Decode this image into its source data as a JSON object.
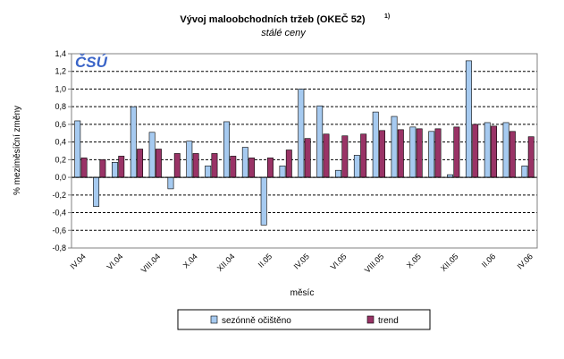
{
  "chart_data": {
    "type": "bar",
    "title": "Vývoj maloobchodních tržeb (OKEČ  52)",
    "title_superscript": "1)",
    "subtitle": "stálé ceny",
    "logo": "ČSÚ",
    "xlabel": "měsíc",
    "ylabel": "% meziměsíční změny",
    "ylim": [
      -0.8,
      1.4
    ],
    "yticks": [
      "1,4",
      "1,2",
      "1,0",
      "0,8",
      "0,6",
      "0,4",
      "0,2",
      "0,0",
      "-0,2",
      "-0,4",
      "-0,6",
      "-0,8"
    ],
    "ytick_values": [
      1.4,
      1.2,
      1.0,
      0.8,
      0.6,
      0.4,
      0.2,
      0.0,
      -0.2,
      -0.4,
      -0.6,
      -0.8
    ],
    "grid": true,
    "categories": [
      "IV.04",
      "V.04",
      "VI.04",
      "VII.04",
      "VIII.04",
      "IX.04",
      "X.04",
      "XI.04",
      "XII.04",
      "I.05",
      "II.05",
      "III.05",
      "IV.05",
      "V.05",
      "VI.05",
      "VII.05",
      "VIII.05",
      "IX.05",
      "X.05",
      "XI.05",
      "XII.05",
      "I.06",
      "II.06",
      "III.06",
      "IV.06"
    ],
    "xtick_labels": [
      "IV.04",
      "VI.04",
      "VIII.04",
      "X.04",
      "XII.04",
      "II.05",
      "IV.05",
      "VI.05",
      "VIII.05",
      "X.05",
      "XII.05",
      "II.06",
      "IV.06"
    ],
    "series": [
      {
        "name": "sezónně očištěno",
        "color": "#a6caf0",
        "values": [
          0.64,
          -0.33,
          0.17,
          0.8,
          0.51,
          -0.13,
          0.41,
          0.13,
          0.63,
          0.34,
          -0.54,
          0.13,
          1.0,
          0.81,
          0.08,
          0.25,
          0.74,
          0.69,
          0.57,
          0.52,
          0.03,
          1.32,
          0.62,
          0.62,
          0.13
        ]
      },
      {
        "name": "trend",
        "color": "#993366",
        "values": [
          0.22,
          0.2,
          0.24,
          0.32,
          0.32,
          0.27,
          0.27,
          0.27,
          0.24,
          0.22,
          0.22,
          0.31,
          0.44,
          0.49,
          0.47,
          0.49,
          0.53,
          0.54,
          0.55,
          0.55,
          0.57,
          0.6,
          0.58,
          0.52,
          0.46
        ]
      }
    ],
    "legend_position": "bottom-center"
  }
}
